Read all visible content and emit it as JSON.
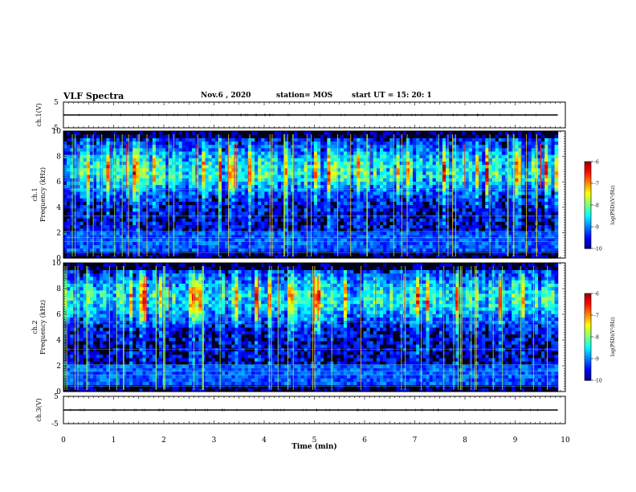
{
  "header": {
    "title": "VLF Spectra",
    "date": "Nov.6 , 2020",
    "station": "station= MOS",
    "start": "start UT = 15: 20: 1"
  },
  "chart_data": [
    {
      "type": "line",
      "panel": "ch1-waveform",
      "ylabel": "ch.1(V)",
      "ylim": [
        -5,
        5
      ],
      "yticks": [
        "5",
        "-5"
      ],
      "series": [
        {
          "x": [
            0,
            9.85
          ],
          "y": [
            0,
            0
          ]
        }
      ]
    },
    {
      "type": "heatmap",
      "panel": "ch1-spectrogram",
      "ylabel": [
        "ch.1",
        "Frequency (kHz)"
      ],
      "ylim": [
        0,
        10
      ],
      "yticks": [
        "0",
        "2",
        "4",
        "6",
        "8",
        "10"
      ],
      "xlim": [
        0,
        10
      ],
      "data_extent_min": 9.85,
      "colorbar": {
        "label": "log(PSD)(V²/Hz)",
        "range": [
          -10,
          -6
        ],
        "ticks": [
          "-6",
          "-7",
          "-8",
          "-9",
          "-10"
        ]
      }
    },
    {
      "type": "heatmap",
      "panel": "ch2-spectrogram",
      "ylabel": [
        "ch.2",
        "Frequency (kHz)"
      ],
      "ylim": [
        0,
        10
      ],
      "yticks": [
        "0",
        "2",
        "4",
        "6",
        "8",
        "10"
      ],
      "xlim": [
        0,
        10
      ],
      "data_extent_min": 9.85,
      "colorbar": {
        "label": "log(PSD)(V²/Hz)",
        "range": [
          -10,
          -6
        ],
        "ticks": [
          "-6",
          "-7",
          "-8",
          "-9",
          "-10"
        ]
      }
    },
    {
      "type": "line",
      "panel": "ch3-waveform",
      "ylabel": "ch.3(V)",
      "ylim": [
        -5,
        5
      ],
      "yticks": [
        "5",
        "-5"
      ],
      "xlabel": "Time (min)",
      "xlim": [
        0,
        10
      ],
      "xticks": [
        "0",
        "1",
        "2",
        "3",
        "4",
        "5",
        "6",
        "7",
        "8",
        "9",
        "10"
      ],
      "series": [
        {
          "x": [
            0,
            9.85
          ],
          "y": [
            0,
            0
          ]
        }
      ]
    }
  ]
}
